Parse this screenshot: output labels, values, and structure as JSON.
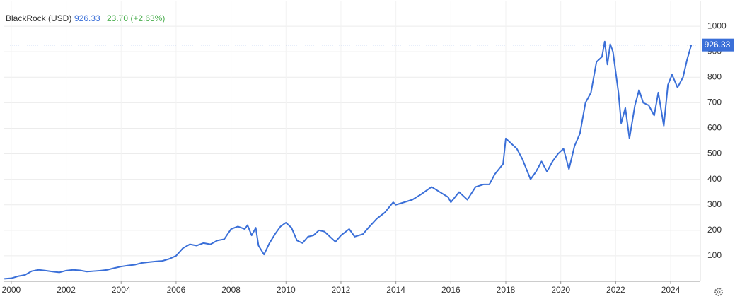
{
  "chart_data": {
    "type": "line",
    "title": "BlackRock (USD)",
    "last_price": 926.33,
    "change": "23.70 (+2.63%)",
    "xlim": [
      1999.72,
      2025.08
    ],
    "ylim": [
      0,
      1100
    ],
    "xticks": [
      2000,
      2002,
      2004,
      2006,
      2008,
      2010,
      2012,
      2014,
      2016,
      2018,
      2020,
      2022,
      2024
    ],
    "yticks": [
      100,
      200,
      300,
      400,
      500,
      600,
      700,
      800,
      900,
      1000
    ],
    "grid": true,
    "series": [
      {
        "name": "BlackRock",
        "color": "#3a6fd8",
        "x": [
          1999.75,
          2000.0,
          2000.25,
          2000.5,
          2000.75,
          2001.0,
          2001.25,
          2001.5,
          2001.75,
          2002.0,
          2002.25,
          2002.5,
          2002.75,
          2003.0,
          2003.25,
          2003.5,
          2003.75,
          2004.0,
          2004.25,
          2004.5,
          2004.75,
          2005.0,
          2005.25,
          2005.5,
          2005.75,
          2006.0,
          2006.25,
          2006.5,
          2006.75,
          2007.0,
          2007.25,
          2007.5,
          2007.75,
          2008.0,
          2008.25,
          2008.5,
          2008.6,
          2008.75,
          2008.9,
          2009.0,
          2009.2,
          2009.4,
          2009.6,
          2009.8,
          2010.0,
          2010.2,
          2010.4,
          2010.6,
          2010.8,
          2011.0,
          2011.2,
          2011.4,
          2011.6,
          2011.8,
          2012.0,
          2012.3,
          2012.5,
          2012.8,
          2013.0,
          2013.3,
          2013.6,
          2013.9,
          2014.0,
          2014.3,
          2014.6,
          2014.9,
          2015.3,
          2015.6,
          2015.9,
          2016.0,
          2016.3,
          2016.6,
          2016.9,
          2017.2,
          2017.4,
          2017.6,
          2017.9,
          2018.0,
          2018.2,
          2018.4,
          2018.6,
          2018.9,
          2019.1,
          2019.3,
          2019.5,
          2019.7,
          2019.9,
          2020.1,
          2020.3,
          2020.5,
          2020.7,
          2020.9,
          2021.1,
          2021.3,
          2021.5,
          2021.6,
          2021.7,
          2021.8,
          2021.9,
          2022.1,
          2022.2,
          2022.35,
          2022.5,
          2022.7,
          2022.85,
          2023.0,
          2023.2,
          2023.4,
          2023.55,
          2023.75,
          2023.9,
          2024.05,
          2024.25,
          2024.45,
          2024.6,
          2024.75
        ],
        "values": [
          10,
          12,
          20,
          25,
          40,
          45,
          42,
          38,
          35,
          42,
          45,
          43,
          38,
          40,
          42,
          45,
          52,
          58,
          62,
          65,
          72,
          75,
          78,
          80,
          88,
          100,
          130,
          145,
          140,
          150,
          145,
          160,
          165,
          205,
          215,
          205,
          220,
          180,
          210,
          140,
          105,
          150,
          185,
          215,
          230,
          210,
          160,
          150,
          175,
          180,
          200,
          195,
          175,
          155,
          180,
          205,
          175,
          185,
          210,
          245,
          270,
          310,
          300,
          310,
          320,
          340,
          370,
          350,
          330,
          310,
          350,
          320,
          370,
          380,
          380,
          420,
          460,
          560,
          540,
          520,
          480,
          400,
          430,
          470,
          430,
          470,
          500,
          520,
          440,
          530,
          580,
          700,
          740,
          860,
          880,
          940,
          850,
          930,
          900,
          740,
          620,
          680,
          560,
          690,
          750,
          700,
          690,
          650,
          740,
          610,
          770,
          810,
          760,
          800,
          870,
          926.33
        ]
      }
    ]
  }
}
